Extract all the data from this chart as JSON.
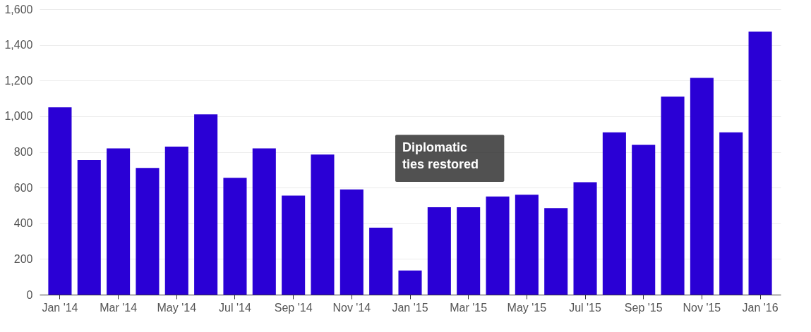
{
  "chart_data": {
    "type": "bar",
    "categories": [
      "Jan '14",
      null,
      "Mar '14",
      null,
      "May '14",
      null,
      "Jul '14",
      null,
      "Sep '14",
      null,
      "Nov '14",
      null,
      "Jan '15",
      null,
      "Mar '15",
      null,
      "May '15",
      null,
      "Jul '15",
      null,
      "Sep '15",
      null,
      "Nov '15",
      null,
      "Jan '16"
    ],
    "values": [
      1050,
      755,
      820,
      710,
      830,
      1010,
      655,
      820,
      555,
      785,
      590,
      375,
      135,
      490,
      490,
      550,
      560,
      485,
      630,
      910,
      840,
      1110,
      1215,
      910,
      1475
    ],
    "color": "#2a00d5",
    "ylim": [
      0,
      1600
    ],
    "yticks": [
      0,
      200,
      400,
      600,
      800,
      {
        "value": 1000,
        "label": "1,000"
      },
      {
        "value": 1200,
        "label": "1,200"
      },
      {
        "value": 1400,
        "label": "1,400"
      },
      {
        "value": 1600,
        "label": "1,600"
      }
    ],
    "grid": "y",
    "annotations": [
      "Diplomatic ties restored"
    ]
  }
}
